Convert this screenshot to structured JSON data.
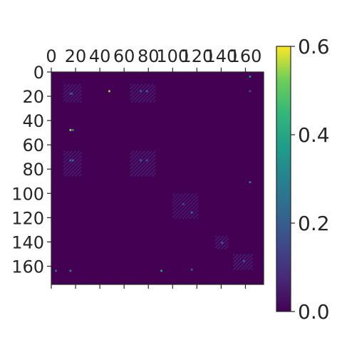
{
  "chart_data": {
    "type": "heatmap",
    "title": "",
    "xlabel": "",
    "ylabel": "",
    "matrix_size": 175,
    "x_ticks": [
      0,
      20,
      40,
      60,
      80,
      100,
      120,
      140,
      160
    ],
    "x_tick_labels": [
      "0",
      "20",
      "40",
      "60",
      "80",
      "100",
      "120",
      "140",
      "160"
    ],
    "y_ticks": [
      0,
      20,
      40,
      60,
      80,
      100,
      120,
      140,
      160
    ],
    "y_tick_labels": [
      "0",
      "20",
      "40",
      "60",
      "80",
      "100",
      "120",
      "140",
      "160"
    ],
    "x_axis_position": "top",
    "xlim": [
      0,
      175
    ],
    "ylim": [
      175,
      0
    ],
    "colormap": "viridis",
    "background_value": 0.0,
    "colorbar": {
      "min": 0.0,
      "max": 0.6,
      "ticks": [
        0.0,
        0.2,
        0.4,
        0.6
      ],
      "tick_labels": [
        "0.0",
        "0.2",
        "0.4",
        "0.6"
      ],
      "position": "right"
    },
    "highlight_cells": [
      {
        "row": 15,
        "col": 47,
        "value": 0.55
      },
      {
        "row": 15,
        "col": 78,
        "value": 0.25
      },
      {
        "row": 15,
        "col": 73,
        "value": 0.2
      },
      {
        "row": 17,
        "col": 15,
        "value": 0.18
      },
      {
        "row": 17,
        "col": 16,
        "value": 0.2
      },
      {
        "row": 15,
        "col": 163,
        "value": 0.18
      },
      {
        "row": 47,
        "col": 15,
        "value": 0.55
      },
      {
        "row": 47,
        "col": 17,
        "value": 0.3
      },
      {
        "row": 72,
        "col": 15,
        "value": 0.25
      },
      {
        "row": 72,
        "col": 17,
        "value": 0.22
      },
      {
        "row": 72,
        "col": 73,
        "value": 0.2
      },
      {
        "row": 72,
        "col": 78,
        "value": 0.2
      },
      {
        "row": 3,
        "col": 163,
        "value": 0.35
      },
      {
        "row": 90,
        "col": 163,
        "value": 0.3
      },
      {
        "row": 108,
        "col": 108,
        "value": 0.18
      },
      {
        "row": 115,
        "col": 115,
        "value": 0.25
      },
      {
        "row": 140,
        "col": 140,
        "value": 0.22
      },
      {
        "row": 155,
        "col": 158,
        "value": 0.2
      },
      {
        "row": 163,
        "col": 90,
        "value": 0.4
      },
      {
        "row": 163,
        "col": 15,
        "value": 0.3
      },
      {
        "row": 163,
        "col": 3,
        "value": 0.25
      },
      {
        "row": 162,
        "col": 115,
        "value": 0.2
      }
    ],
    "highlight_blocks": [
      {
        "row_start": 10,
        "row_end": 24,
        "col_start": 10,
        "col_end": 24,
        "value": 0.07
      },
      {
        "row_start": 10,
        "row_end": 24,
        "col_start": 65,
        "col_end": 85,
        "value": 0.07
      },
      {
        "row_start": 65,
        "row_end": 85,
        "col_start": 10,
        "col_end": 24,
        "value": 0.07
      },
      {
        "row_start": 65,
        "row_end": 85,
        "col_start": 65,
        "col_end": 85,
        "value": 0.07
      },
      {
        "row_start": 100,
        "row_end": 120,
        "col_start": 100,
        "col_end": 120,
        "value": 0.06
      },
      {
        "row_start": 135,
        "row_end": 145,
        "col_start": 135,
        "col_end": 145,
        "value": 0.07
      },
      {
        "row_start": 150,
        "row_end": 162,
        "col_start": 150,
        "col_end": 165,
        "value": 0.08
      }
    ]
  }
}
